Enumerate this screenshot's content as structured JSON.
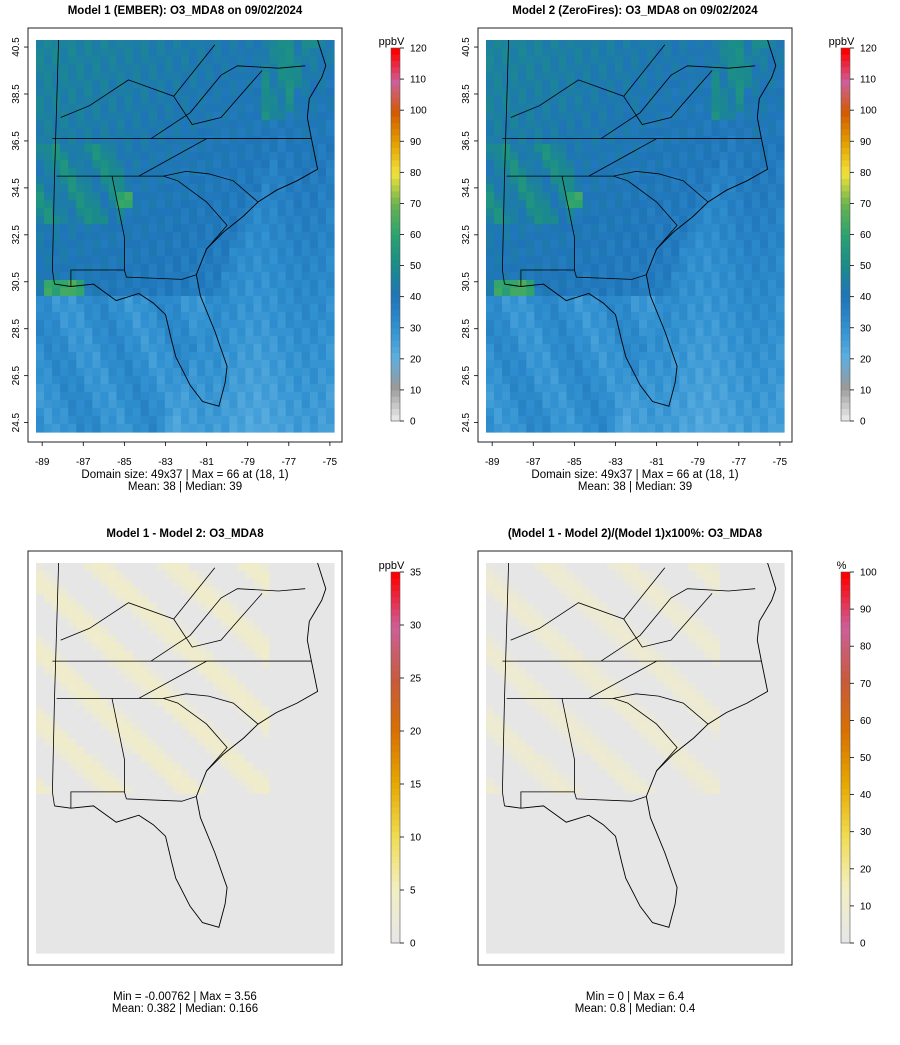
{
  "chart_data": [
    {
      "type": "heatmap",
      "title": "Model 1 (EMBER): O3_MDA8 on 09/02/2024",
      "colorbar_label": "ppbV",
      "colorbar_ticks": [
        0,
        10,
        20,
        30,
        40,
        50,
        60,
        70,
        80,
        90,
        100,
        110,
        120
      ],
      "colorbar_range": [
        0,
        120
      ],
      "xticks": [
        -89,
        -87,
        -85,
        -83,
        -81,
        -79,
        -77,
        -75
      ],
      "yticks": [
        24.5,
        26.5,
        28.5,
        30.5,
        32.5,
        34.5,
        36.5,
        38.5,
        40.5
      ],
      "xlim": [
        -89.3,
        -74.8
      ],
      "ylim": [
        24.1,
        40.8
      ],
      "grid_size": "49x37",
      "stats_lines": [
        "Domain size: 49x37 | Max = 66 at (18, 1)",
        "Mean: 38 |  Median: 39"
      ],
      "stats": {
        "max": 66,
        "max_at": "(18, 1)",
        "mean": 38,
        "median": 39
      },
      "field": "ozone_ember"
    },
    {
      "type": "heatmap",
      "title": "Model 2 (ZeroFires): O3_MDA8 on 09/02/2024",
      "colorbar_label": "ppbV",
      "colorbar_ticks": [
        0,
        10,
        20,
        30,
        40,
        50,
        60,
        70,
        80,
        90,
        100,
        110,
        120
      ],
      "colorbar_range": [
        0,
        120
      ],
      "xticks": [
        -89,
        -87,
        -85,
        -83,
        -81,
        -79,
        -77,
        -75
      ],
      "yticks": [
        24.5,
        26.5,
        28.5,
        30.5,
        32.5,
        34.5,
        36.5,
        38.5,
        40.5
      ],
      "xlim": [
        -89.3,
        -74.8
      ],
      "ylim": [
        24.1,
        40.8
      ],
      "grid_size": "49x37",
      "stats_lines": [
        "Domain size: 49x37 | Max = 66 at (18, 1)",
        "Mean: 38 |  Median: 39"
      ],
      "stats": {
        "max": 66,
        "max_at": "(18, 1)",
        "mean": 38,
        "median": 39
      },
      "field": "ozone_zerofires"
    },
    {
      "type": "heatmap",
      "title": "Model 1 - Model 2: O3_MDA8",
      "colorbar_label": "ppbV",
      "colorbar_ticks": [
        0,
        5,
        10,
        15,
        20,
        25,
        30,
        35
      ],
      "colorbar_range": [
        0,
        35
      ],
      "xticks": [],
      "yticks": [],
      "stats_lines": [
        "Min = -0.00762 | Max = 3.56",
        "Mean: 0.382 |  Median: 0.166"
      ],
      "stats": {
        "min": -0.00762,
        "max": 3.56,
        "mean": 0.382,
        "median": 0.166
      },
      "field": "difference"
    },
    {
      "type": "heatmap",
      "title": "(Model 1 - Model 2)/(Model 1)x100%: O3_MDA8",
      "colorbar_label": "%",
      "colorbar_ticks": [
        0,
        10,
        20,
        30,
        40,
        50,
        60,
        70,
        80,
        90,
        100
      ],
      "colorbar_range": [
        0,
        100
      ],
      "xticks": [],
      "yticks": [],
      "stats_lines": [
        "Min = 0 | Max = 6.4",
        "Mean: 0.8 |  Median: 0.4"
      ],
      "stats": {
        "min": 0,
        "max": 6.4,
        "mean": 0.8,
        "median": 0.4
      },
      "field": "percent"
    }
  ],
  "colors": {
    "scale": [
      "#e6e6e6",
      "#9a9a9a",
      "#5aaee0",
      "#2f8fcf",
      "#1f74b8",
      "#1b8c8a",
      "#2aa36f",
      "#6bb34e",
      "#f2e23a",
      "#e2a000",
      "#d35a00",
      "#cc5f9a",
      "#ff0000"
    ],
    "diff_scale": [
      "#e6e6e6",
      "#f3eec2",
      "#f0dc50",
      "#e6a800",
      "#d97000",
      "#c85a3c",
      "#cc5f9a",
      "#ff0000"
    ],
    "state_lines": "#000000"
  }
}
